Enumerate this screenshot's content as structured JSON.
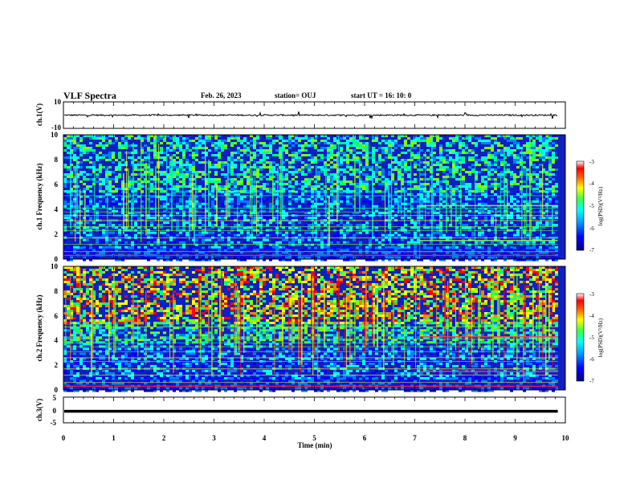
{
  "header": {
    "title": "VLF Spectra",
    "date": "Feb. 26, 2023",
    "station": "station= OUJ",
    "start": "start  UT  =   16: 10: 0"
  },
  "chart_data": [
    {
      "type": "line",
      "panel": "ch1-waveform",
      "ylabel": "ch.1(V)",
      "ylim": [
        -10,
        10
      ],
      "yticks": [
        "10",
        "-10"
      ],
      "x_range_min": [
        0,
        9.85
      ],
      "baseline_value": 0,
      "noise_amplitude": 1,
      "color": "#000000"
    },
    {
      "type": "heatmap",
      "panel": "ch1-spectrogram",
      "ylabel": "ch.1 Frequency  (kHz)",
      "ylim_khz": [
        0,
        10
      ],
      "yticks": [
        "0",
        "2",
        "4",
        "6",
        "8",
        "10"
      ],
      "x_range_min": [
        0,
        9.85
      ],
      "colorbar": {
        "label": "log(PSD)(V²/Hz)",
        "range": [
          -7,
          -3
        ],
        "ticks": [
          "-3",
          "-4",
          "-5",
          "-6",
          "-7"
        ]
      },
      "intensity_level": "low"
    },
    {
      "type": "heatmap",
      "panel": "ch2-spectrogram",
      "ylabel": "ch.2 Frequency  (kHz)",
      "ylim_khz": [
        0,
        10
      ],
      "yticks": [
        "0",
        "2",
        "4",
        "6",
        "8",
        "10"
      ],
      "x_range_min": [
        0,
        9.85
      ],
      "colorbar": {
        "label": "log(PSD)(V²/Hz)",
        "range": [
          -7,
          -3
        ],
        "ticks": [
          "-3",
          "-4",
          "-5",
          "-6",
          "-7"
        ]
      },
      "intensity_level": "high"
    },
    {
      "type": "line",
      "panel": "ch3-waveform",
      "ylabel": "ch.3(V)",
      "ylim": [
        -5,
        5
      ],
      "yticks": [
        "5",
        "0",
        "-5"
      ],
      "x_range_min": [
        0,
        9.85
      ],
      "constant_value": -0.5,
      "color": "#000000"
    }
  ],
  "xaxis": {
    "label": "Time  (min)",
    "range": [
      0,
      10
    ],
    "ticks": [
      "0",
      "1",
      "2",
      "3",
      "4",
      "5",
      "6",
      "7",
      "8",
      "9",
      "10"
    ]
  },
  "colors": {
    "scale": [
      "#000080",
      "#0000ff",
      "#0080ff",
      "#00ffff",
      "#00ff80",
      "#80ff00",
      "#ffff00",
      "#ff8000",
      "#ff0000",
      "#ffffff"
    ]
  }
}
